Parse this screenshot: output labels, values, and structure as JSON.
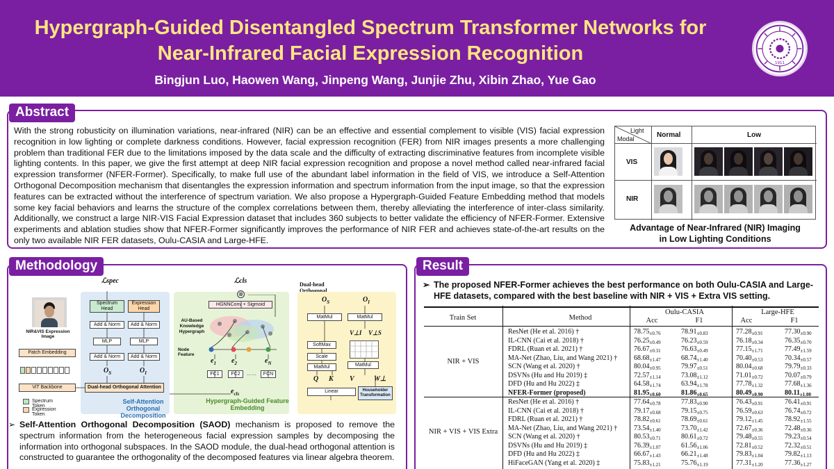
{
  "header": {
    "title_line1": "Hypergraph-Guided Disentangled Spectrum Transformer Networks for",
    "title_line2": "Near-Infrared Facial Expression Recognition",
    "authors": "Bingjun Luo, Haowen Wang, Jinpeng Wang, Junjie Zhu, Xibin Zhao, Yue Gao",
    "logo": "university-seal-icon",
    "logo_year": "1911"
  },
  "colors": {
    "brand_purple": "#7a1fa2",
    "title_yellow": "#ffe680"
  },
  "abstract": {
    "label": "Abstract",
    "text": "With the strong robusticity on illumination variations, near-infrared (NIR) can be an effective and essential complement to visible (VIS) facial expression recognition in low lighting or complete darkness conditions. However, facial expression recognition (FER) from NIR images presents a more challenging problem than traditional FER due to the limitations imposed by the data scale and the difficulty of extracting discriminative features from incomplete visible lighting contents. In this paper, we give the first attempt at deep NIR facial expression recognition and propose a novel method called near-infrared facial expression transformer (NFER-Former). Specifically, to make full use of the abundant label information in the field of VIS, we introduce a Self-Attention Orthogonal Decomposition mechanism that disentangles the expression information and spectrum information from the input image, so that the expression features can be extracted without the interference of spectrum variation. We also propose a Hypergraph-Guided Feature Embedding method that models some key facial behaviors and learns the structure of the complex correlations between them, thereby alleviating the interference of inter-class similarity. Additionally, we construct a large NIR-VIS Facial Expression dataset that includes 360 subjects to better validate the efficiency of NFER-Former. Extensive experiments and ablation studies show that NFER-Former significantly improves the performance of NIR FER and achieves state-of-the-art results on the only two available NIR FER datasets, Oulu-CASIA and Large-HFE.",
    "figure": {
      "corner_light": "Light",
      "corner_modal": "Modal",
      "col_normal": "Normal",
      "col_low": "Low",
      "row_vis": "VIS",
      "row_nir": "NIR",
      "caption_line1": "Advantage of Near-Infrared (NIR) Imaging",
      "caption_line2": "in Low Lighting Conditions"
    }
  },
  "methodology": {
    "label": "Methodology",
    "diagram": {
      "l_spec": "ℒspec",
      "l_cls": "ℒcls",
      "spectrum_head": "Spectrum Head",
      "expression_head": "Expression Head",
      "add_norm": "Add & Norm",
      "mlp": "MLP",
      "o_s": "O",
      "o_s_sub": "S",
      "o_i": "O",
      "o_i_sub": "I",
      "input_caption": "NIR&VIS Expression Image",
      "patch_embedding": "Patch Embedding",
      "vit_backbone": "ViT Backbone",
      "dual_head": "Dual-head Orthogonal Attention",
      "legend_spectrum": "Spectrum Token",
      "legend_expression": "Expression Token",
      "saod_label_1": "Self-Attention",
      "saod_label_2": "Orthogonal Decomposition",
      "hgnn": "HGNNConv + Sigmoid",
      "au_hypergraph": "AU-Based Knowledge Hypergraph",
      "node_feature": "Node Feature",
      "e1": "e",
      "e1_sub": "1",
      "e2": "e",
      "e2_sub": "2",
      "eN": "e",
      "eN_sub": "N",
      "fc1": "FC1",
      "fc2": "FC2",
      "fcN": "FCN",
      "dots": "……",
      "e_cls": "e",
      "e_cls_sub": "cls",
      "hgfe_label_1": "Hypergraph-Guided Feature",
      "hgfe_label_2": "Embedding",
      "doa_title": "Dual-head Orthogonal Attention",
      "matmul": "MatMul",
      "softmax": "SoftMax",
      "scale": "Scale",
      "linear": "Linear",
      "householder": "Householder Transformation",
      "q": "Q",
      "k": "K",
      "v": "V",
      "w_perp": "W⊥",
      "v_perp_i": "V⊥I",
      "v_perp_s": "V⊥S",
      "otimes": "⊗"
    },
    "saod_bold": "Self-Attention Orthogonal Decomposition (SAOD)",
    "saod_text": " mechanism is proposed to remove the spectrum information from the heterogeneous facial expression samples by decomposing the information into orthogonal subspaces. In the SAOD module, the dual-head orthogonal attention is constructed to guarantee the orthogonality of the decomposed features via linear algebra theorem."
  },
  "result": {
    "label": "Result",
    "claim": "The proposed NFER-Former achieves the best performance on both Oulu-CASIA and Large-HFE datasets, compared with the best baseline with NIR + VIS + Extra VIS setting.",
    "table": {
      "headers": {
        "train_set": "Train Set",
        "method": "Method",
        "oulu": "Oulu-CASIA",
        "large": "Large-HFE",
        "acc": "Acc",
        "f1": "F1"
      },
      "groups": [
        {
          "train_set": "NIR + VIS",
          "rows": [
            {
              "method": "ResNet (He et al. 2016) †",
              "oa": "78.75",
              "oas": "±0.76",
              "of": "78.91",
              "ofs": "±0.83",
              "la": "77.28",
              "las": "±0.91",
              "lf": "77.30",
              "lfs": "±0.90"
            },
            {
              "method": "IL-CNN (Cai et al. 2018) †",
              "oa": "76.25",
              "oas": "±0.49",
              "of": "76.23",
              "ofs": "±0.59",
              "la": "76.18",
              "las": "±0.34",
              "lf": "76.35",
              "lfs": "±0.70"
            },
            {
              "method": "FDRL (Ruan et al. 2021) †",
              "oa": "76.67",
              "oas": "±0.31",
              "of": "76.63",
              "ofs": "±0.49",
              "la": "77.15",
              "las": "±1.71",
              "lf": "77.49",
              "lfs": "±1.59"
            },
            {
              "method": "MA-Net (Zhao, Liu, and Wang 2021) †",
              "oa": "68.68",
              "oas": "±1.47",
              "of": "68.74",
              "ofs": "±1.40",
              "la": "70.40",
              "las": "±0.53",
              "lf": "70.34",
              "lfs": "±0.57"
            },
            {
              "method": "SCN (Wang et al. 2020) †",
              "oa": "80.04",
              "oas": "±0.95",
              "of": "79.97",
              "ofs": "±0.51",
              "la": "80.04",
              "las": "±0.68",
              "lf": "79.79",
              "lfs": "±0.33"
            },
            {
              "method": "DSVNs (Hu and Hu 2019) ‡",
              "oa": "72.57",
              "oas": "±1.14",
              "of": "73.08",
              "ofs": "±1.12",
              "la": "71.01",
              "las": "±0.72",
              "lf": "70.07",
              "lfs": "±0.79"
            },
            {
              "method": "DFD (Hu and Hu 2022) ‡",
              "oa": "64.58",
              "oas": "±1.74",
              "of": "63.94",
              "ofs": "±1.78",
              "la": "77.78",
              "las": "±1.32",
              "lf": "77.68",
              "lfs": "±1.36"
            },
            {
              "method": "NFER-Former (proposed)",
              "oa": "81.95",
              "oas": "±0.60",
              "of": "81.86",
              "ofs": "±0.65",
              "la": "80.49",
              "las": "±0.90",
              "lf": "80.11",
              "lfs": "±1.00",
              "bold": true
            }
          ]
        },
        {
          "train_set": "NIR + VIS + VIS Extra",
          "rows": [
            {
              "method": "ResNet (He et al. 2016) †",
              "oa": "77.64",
              "oas": "±0.78",
              "of": "77.83",
              "ofs": "±0.90",
              "la": "76.43",
              "las": "±0.91",
              "lf": "76.41",
              "lfs": "±0.91"
            },
            {
              "method": "IL-CNN (Cai et al. 2018) †",
              "oa": "79.17",
              "oas": "±0.68",
              "of": "79.15",
              "ofs": "±0.75",
              "la": "76.59",
              "las": "±0.63",
              "lf": "76.74",
              "lfs": "±0.72"
            },
            {
              "method": "FDRL (Ruan et al. 2021) †",
              "oa": "78.82",
              "oas": "±0.61",
              "of": "78.69",
              "ofs": "±0.61",
              "la": "79.12",
              "las": "±1.45",
              "lf": "78.92",
              "lfs": "±1.55"
            },
            {
              "method": "MA-Net (Zhao, Liu, and Wang 2021) †",
              "oa": "73.54",
              "oas": "±1.40",
              "of": "73.70",
              "ofs": "±1.42",
              "la": "72.67",
              "las": "±0.36",
              "lf": "72.48",
              "lfs": "±0.36"
            },
            {
              "method": "SCN (Wang et al. 2020) †",
              "oa": "80.53",
              "oas": "±0.71",
              "of": "80.61",
              "ofs": "±0.72",
              "la": "79.48",
              "las": "±0.55",
              "lf": "79.23",
              "lfs": "±0.54"
            },
            {
              "method": "DSVNs (Hu and Hu 2019) ‡",
              "oa": "76.39",
              "oas": "±1.07",
              "of": "61.56",
              "ofs": "±1.06",
              "la": "72.81",
              "las": "±0.52",
              "lf": "72.32",
              "lfs": "±0.51"
            },
            {
              "method": "DFD (Hu and Hu 2022) ‡",
              "oa": "66.67",
              "oas": "±1.43",
              "of": "66.21",
              "ofs": "±1.48",
              "la": "79.83",
              "las": "±1.04",
              "lf": "79.82",
              "lfs": "±1.13"
            },
            {
              "method": "HiFaceGAN (Yang et al. 2020) ‡",
              "oa": "75.83",
              "oas": "±1.21",
              "of": "75.76",
              "ofs": "±1.19",
              "la": "77.31",
              "las": "±1.20",
              "lf": "77.36",
              "lfs": "±1.27"
            }
          ]
        }
      ]
    }
  }
}
